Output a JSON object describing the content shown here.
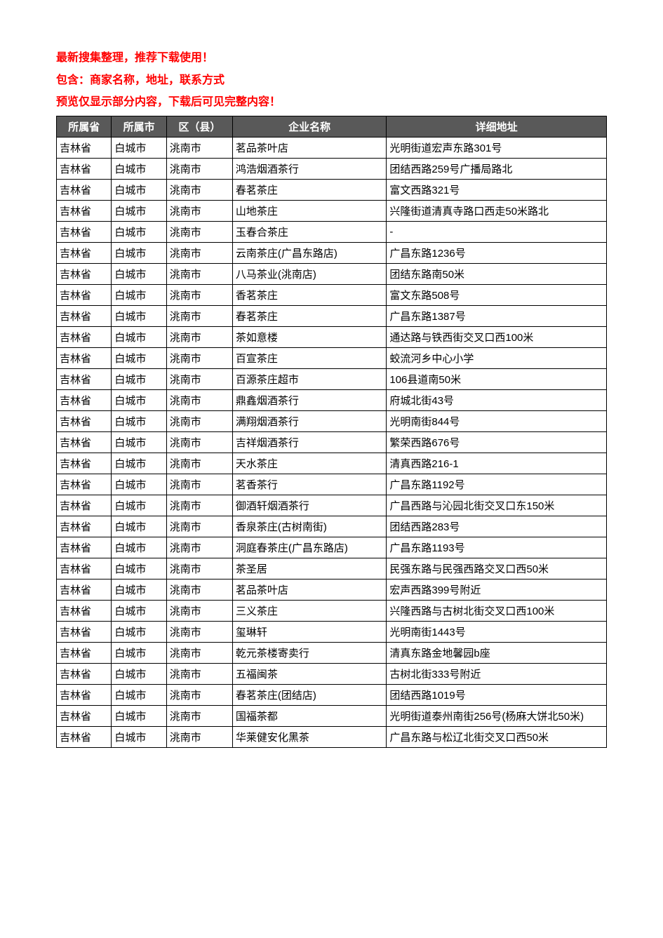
{
  "notice_lines": [
    "最新搜集整理，推荐下载使用！",
    "包含：商家名称，地址，联系方式",
    "预览仅显示部分内容，下载后可见完整内容！"
  ],
  "notice_color": "#ff0000",
  "table": {
    "header_bg": "#595959",
    "header_fg": "#ffffff",
    "border_color": "#000000",
    "columns": [
      {
        "label": "所属省",
        "width": "10%"
      },
      {
        "label": "所属市",
        "width": "10%"
      },
      {
        "label": "区（县）",
        "width": "12%"
      },
      {
        "label": "企业名称",
        "width": "28%"
      },
      {
        "label": "详细地址",
        "width": "40%"
      }
    ],
    "rows": [
      [
        "吉林省",
        "白城市",
        "洮南市",
        "茗品茶叶店",
        "光明街道宏声东路301号"
      ],
      [
        "吉林省",
        "白城市",
        "洮南市",
        "鸿浩烟酒茶行",
        "团结西路259号广播局路北"
      ],
      [
        "吉林省",
        "白城市",
        "洮南市",
        "春茗茶庄",
        "富文西路321号"
      ],
      [
        "吉林省",
        "白城市",
        "洮南市",
        "山地茶庄",
        "兴隆街道清真寺路口西走50米路北"
      ],
      [
        "吉林省",
        "白城市",
        "洮南市",
        "玉春合茶庄",
        "-"
      ],
      [
        "吉林省",
        "白城市",
        "洮南市",
        "云南茶庄(广昌东路店)",
        "广昌东路1236号"
      ],
      [
        "吉林省",
        "白城市",
        "洮南市",
        "八马茶业(洮南店)",
        "团结东路南50米"
      ],
      [
        "吉林省",
        "白城市",
        "洮南市",
        "香茗茶庄",
        "富文东路508号"
      ],
      [
        "吉林省",
        "白城市",
        "洮南市",
        "春茗茶庄",
        "广昌东路1387号"
      ],
      [
        "吉林省",
        "白城市",
        "洮南市",
        "茶如意楼",
        "通达路与铁西街交叉口西100米"
      ],
      [
        "吉林省",
        "白城市",
        "洮南市",
        "百宣茶庄",
        "蛟流河乡中心小学"
      ],
      [
        "吉林省",
        "白城市",
        "洮南市",
        "百源茶庄超市",
        "106县道南50米"
      ],
      [
        "吉林省",
        "白城市",
        "洮南市",
        "鼎鑫烟酒茶行",
        "府城北街43号"
      ],
      [
        "吉林省",
        "白城市",
        "洮南市",
        "满翔烟酒茶行",
        "光明南街844号"
      ],
      [
        "吉林省",
        "白城市",
        "洮南市",
        "吉祥烟酒茶行",
        "繁荣西路676号"
      ],
      [
        "吉林省",
        "白城市",
        "洮南市",
        "天水茶庄",
        "清真西路216-1"
      ],
      [
        "吉林省",
        "白城市",
        "洮南市",
        "茗香茶行",
        "广昌东路1192号"
      ],
      [
        "吉林省",
        "白城市",
        "洮南市",
        "御酒轩烟酒茶行",
        "广昌西路与沁园北街交叉口东150米"
      ],
      [
        "吉林省",
        "白城市",
        "洮南市",
        "香泉茶庄(古树南街)",
        "团结西路283号"
      ],
      [
        "吉林省",
        "白城市",
        "洮南市",
        "洞庭春茶庄(广昌东路店)",
        "广昌东路1193号"
      ],
      [
        "吉林省",
        "白城市",
        "洮南市",
        "茶圣居",
        "民强东路与民强西路交叉口西50米"
      ],
      [
        "吉林省",
        "白城市",
        "洮南市",
        "茗品茶叶店",
        "宏声西路399号附近"
      ],
      [
        "吉林省",
        "白城市",
        "洮南市",
        "三义茶庄",
        "兴隆西路与古树北街交叉口西100米"
      ],
      [
        "吉林省",
        "白城市",
        "洮南市",
        "玺琳轩",
        "光明南街1443号"
      ],
      [
        "吉林省",
        "白城市",
        "洮南市",
        "乾元茶楼寄卖行",
        "清真东路金地馨园b座"
      ],
      [
        "吉林省",
        "白城市",
        "洮南市",
        "五福闽茶",
        "古树北街333号附近"
      ],
      [
        "吉林省",
        "白城市",
        "洮南市",
        "春茗茶庄(团结店)",
        "团结西路1019号"
      ],
      [
        "吉林省",
        "白城市",
        "洮南市",
        "国福茶都",
        "光明街道泰州南街256号(杨麻大饼北50米)"
      ],
      [
        "吉林省",
        "白城市",
        "洮南市",
        "华莱健安化黑茶",
        "广昌东路与松辽北街交叉口西50米"
      ]
    ]
  }
}
